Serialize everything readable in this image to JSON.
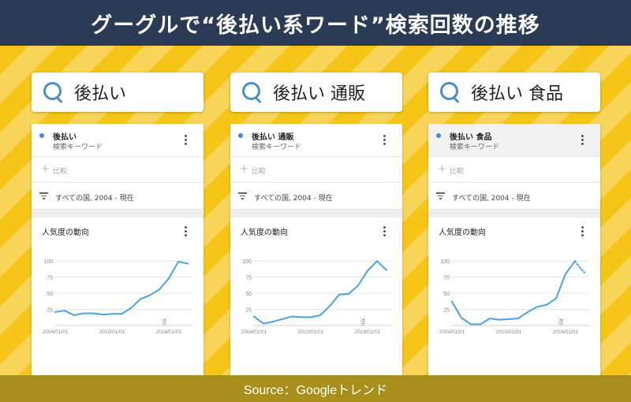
{
  "title": "グーグルで“後払い系ワード”検索回数の推移",
  "footer": "Source：Googleトレンド",
  "colors": {
    "header_bg": "#2b3a55",
    "stage_bg": "#f5c518",
    "footer_bg": "#a88f1c",
    "accent": "#4a90c8",
    "series": "#4aa3df",
    "term_dot": "#4285f4"
  },
  "panels": [
    {
      "search_text": "後払い",
      "term": "後払い",
      "term_type": "検索キーワード",
      "compare_label": "比較",
      "filter_label": "すべての国, 2004 - 現在",
      "trend_title": "人気度の動向",
      "note_label": "注"
    },
    {
      "search_text": "後払い 通販",
      "term": "後払い 通販",
      "term_type": "検索キーワード",
      "compare_label": "比較",
      "filter_label": "すべての国, 2004 - 現在",
      "trend_title": "人気度の動向",
      "note_label": "注"
    },
    {
      "search_text": "後払い 食品",
      "term": "後払い 食品",
      "term_type": "検索キーワード",
      "compare_label": "比較",
      "filter_label": "すべての国, 2004 - 現在",
      "trend_title": "人気度の動向",
      "note_label": "注"
    }
  ],
  "chart_data": [
    {
      "type": "line",
      "title": "人気度の動向",
      "yticks": [
        25,
        50,
        75,
        100
      ],
      "xticks": [
        "2004/01/01",
        "2010/01/01",
        "2016/01/01"
      ],
      "ylim": [
        0,
        110
      ],
      "xlim": [
        2004,
        2018.5
      ],
      "grid": true,
      "series": [
        {
          "x": [
            2004.0,
            2005.0,
            2006.0,
            2007.0,
            2008.0,
            2009.0,
            2010.0,
            2011.0,
            2012.0,
            2013.0,
            2014.0,
            2015.0,
            2016.0,
            2017.0,
            2018.0
          ],
          "values": [
            21,
            23,
            16,
            19,
            19,
            17,
            18,
            18,
            27,
            41,
            47,
            56,
            73,
            99,
            96
          ],
          "dashed_from_index": null
        }
      ]
    },
    {
      "type": "line",
      "title": "人気度の動向",
      "yticks": [
        25,
        50,
        75,
        100
      ],
      "xticks": [
        "2004/01/01",
        "2010/01/01",
        "2016/01/01"
      ],
      "ylim": [
        0,
        110
      ],
      "xlim": [
        2004,
        2018.5
      ],
      "grid": true,
      "series": [
        {
          "x": [
            2004.0,
            2005.0,
            2006.0,
            2007.0,
            2008.0,
            2009.0,
            2010.0,
            2011.0,
            2012.0,
            2013.0,
            2014.0,
            2015.0,
            2016.0,
            2017.0,
            2018.0
          ],
          "values": [
            14,
            3,
            6,
            10,
            14,
            13,
            13,
            16,
            30,
            48,
            49,
            62,
            85,
            100,
            86
          ],
          "dashed_from_index": null
        }
      ]
    },
    {
      "type": "line",
      "title": "人気度の動向",
      "yticks": [
        25,
        50,
        75,
        100
      ],
      "xticks": [
        "2004/01/01",
        "2010/01/01",
        "2016/01/01"
      ],
      "ylim": [
        0,
        110
      ],
      "xlim": [
        2004,
        2018.5
      ],
      "grid": true,
      "series": [
        {
          "x": [
            2004.0,
            2005.0,
            2006.0,
            2007.0,
            2008.0,
            2009.0,
            2010.0,
            2011.0,
            2012.0,
            2013.0,
            2014.0,
            2015.0,
            2016.0,
            2017.0,
            2017.5,
            2018.0
          ],
          "values": [
            37,
            12,
            2,
            2,
            11,
            9,
            10,
            11,
            21,
            29,
            32,
            42,
            80,
            100,
            90,
            82
          ],
          "dashed_from_index": 13
        }
      ]
    }
  ]
}
